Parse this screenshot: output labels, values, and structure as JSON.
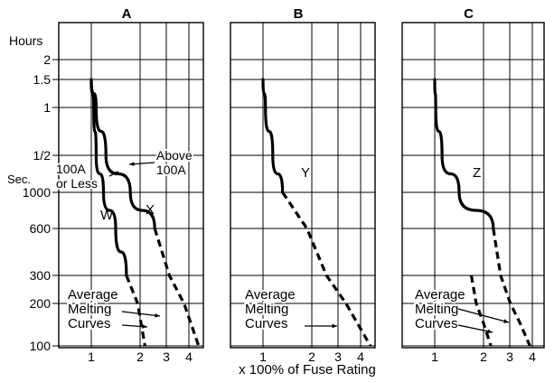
{
  "chart_data": {
    "type": "line",
    "x_label": "x 100% of Fuse Rating",
    "x_scale": "log",
    "x_ticks": [
      "1",
      "2",
      "3",
      "4"
    ],
    "y_scale": "log",
    "y_unit_labels": [
      "Hours",
      "Sec."
    ],
    "y_ticks": [
      "2",
      "1.5",
      "1",
      "1/2",
      "1000",
      "600",
      "300",
      "200",
      "100"
    ],
    "grid": true,
    "panels": [
      {
        "title": "A",
        "series": [
          {
            "name": "W",
            "style": "solid",
            "x_frac": [
              0.0,
              0.05,
              0.1,
              0.25,
              0.5,
              0.72
            ],
            "y_level": [
              1.5,
              1,
              0.5,
              1000,
              600,
              300
            ]
          },
          {
            "name": "X",
            "style": "solid",
            "x_frac": [
              0.0,
              0.1,
              0.3,
              0.8,
              1.3
            ],
            "y_level": [
              1.5,
              1,
              0.5,
              1000,
              600
            ]
          },
          {
            "name": "",
            "style": "dashed",
            "x_frac": [
              0.72,
              0.95,
              1.1
            ],
            "y_level": [
              300,
              200,
              100
            ]
          },
          {
            "name": "",
            "style": "dashed",
            "x_frac": [
              1.3,
              1.6,
              1.9,
              2.2
            ],
            "y_level": [
              600,
              300,
              200,
              100
            ]
          }
        ],
        "annotations": [
          {
            "id": "label-w",
            "text": "W"
          },
          {
            "id": "label-x",
            "text": "X"
          },
          {
            "id": "label-100a-or-less",
            "lines": [
              "100A",
              "or Less"
            ]
          },
          {
            "id": "label-above-100a",
            "lines": [
              "Above",
              "100A"
            ]
          },
          {
            "id": "label-avg",
            "lines": [
              "Average",
              "Melting",
              "Curves"
            ]
          }
        ]
      },
      {
        "title": "B",
        "series": [
          {
            "name": "Y",
            "style": "solid",
            "x_frac": [
              0.0,
              0.05,
              0.2,
              0.4
            ],
            "y_level": [
              1.5,
              1,
              0.5,
              1000
            ]
          },
          {
            "name": "",
            "style": "dashed",
            "x_frac": [
              0.4,
              0.9,
              1.3,
              1.7,
              2.2
            ],
            "y_level": [
              1000,
              600,
              300,
              200,
              100
            ]
          }
        ],
        "annotations": [
          {
            "id": "label-y",
            "text": "Y"
          },
          {
            "id": "label-avg",
            "lines": [
              "Average",
              "Melting",
              "Curves"
            ]
          }
        ]
      },
      {
        "title": "C",
        "series": [
          {
            "name": "Z",
            "style": "solid",
            "x_frac": [
              0.0,
              0.02,
              0.15,
              0.5,
              1.2
            ],
            "y_level": [
              1.5,
              1,
              0.5,
              1000,
              600
            ]
          },
          {
            "name": "",
            "style": "dashed",
            "x_frac": [
              0.75,
              0.85,
              1.0,
              1.15
            ],
            "y_level": [
              300,
              200,
              150,
              100
            ]
          },
          {
            "name": "",
            "style": "dashed",
            "x_frac": [
              1.2,
              1.35,
              1.55,
              1.75,
              1.95
            ],
            "y_level": [
              600,
              300,
              200,
              150,
              100
            ]
          }
        ],
        "annotations": [
          {
            "id": "label-z",
            "text": "Z"
          },
          {
            "id": "label-avg",
            "lines": [
              "Average",
              "Melting",
              "Curves"
            ]
          }
        ]
      }
    ]
  }
}
